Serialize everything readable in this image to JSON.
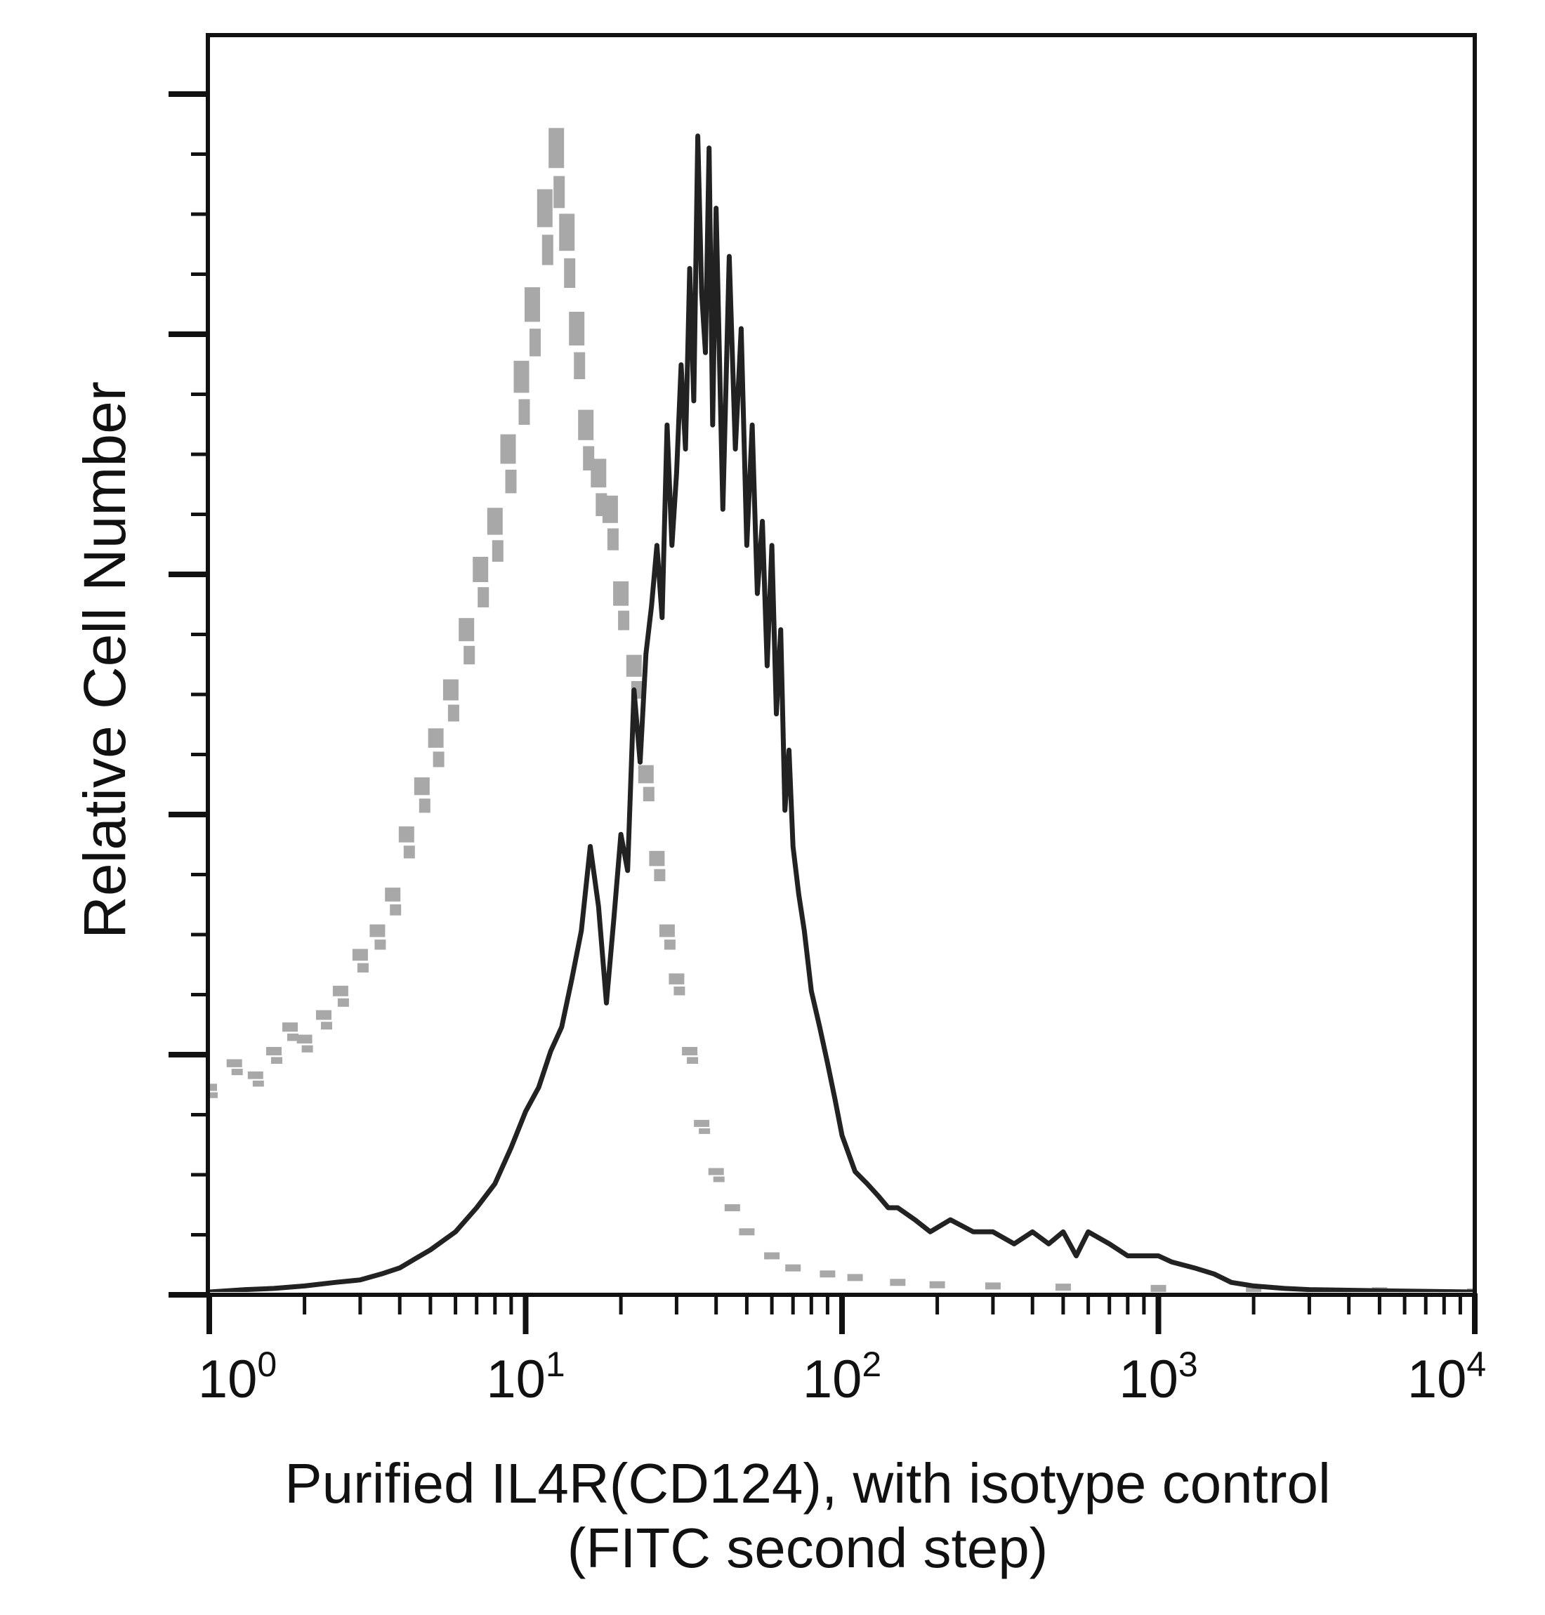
{
  "chart_data": {
    "type": "line",
    "title": "",
    "xlabel": "Purified IL4R(CD124), with isotype control",
    "xlabel_line2": "(FITC second step)",
    "ylabel": "Relative Cell Number",
    "x_scale": "log",
    "xlim": [
      1,
      10000
    ],
    "ylim": [
      0,
      100
    ],
    "x_ticks": [
      {
        "base": "10",
        "exp": "0",
        "value": 1
      },
      {
        "base": "10",
        "exp": "1",
        "value": 10
      },
      {
        "base": "10",
        "exp": "2",
        "value": 100
      },
      {
        "base": "10",
        "exp": "3",
        "value": 1000
      },
      {
        "base": "10",
        "exp": "4",
        "value": 10000
      }
    ],
    "grid": false,
    "legend": "none",
    "series": [
      {
        "style": "gray-dots",
        "color": "#a8a8a8",
        "x": [
          1.0,
          1.2,
          1.4,
          1.6,
          1.8,
          2.0,
          2.3,
          2.6,
          3.0,
          3.4,
          3.8,
          4.2,
          4.7,
          5.2,
          5.8,
          6.5,
          7.2,
          8.0,
          8.8,
          9.7,
          10.5,
          11.5,
          12.5,
          13.5,
          14.5,
          15.5,
          17.0,
          18.5,
          20.0,
          22.0,
          24.0,
          26.0,
          28.0,
          30.0,
          33.0,
          36.0,
          40.0,
          45.0,
          50.0,
          60.0,
          70.0,
          90.0,
          110.0,
          150.0,
          200.0,
          300.0,
          500.0,
          1000.0,
          2000.0,
          5000.0,
          10000.0
        ],
        "y": [
          17,
          19,
          18,
          20,
          22,
          21,
          23,
          25,
          28,
          30,
          33,
          38,
          42,
          46,
          50,
          55,
          60,
          64,
          70,
          76,
          82,
          90,
          95,
          88,
          80,
          72,
          68,
          65,
          58,
          52,
          43,
          36,
          30,
          26,
          20,
          14,
          10,
          7,
          5,
          3,
          2,
          1.5,
          1.2,
          0.8,
          0.6,
          0.5,
          0.4,
          0.3,
          0.2,
          0.1,
          0
        ]
      },
      {
        "style": "black-line",
        "color": "#222222",
        "x": [
          1.0,
          1.3,
          1.6,
          2.0,
          2.5,
          3.0,
          3.5,
          4.0,
          4.5,
          5.0,
          6.0,
          7.0,
          8.0,
          9.0,
          10.0,
          11.0,
          12.0,
          13.0,
          14.0,
          15.0,
          16.0,
          17.0,
          18.0,
          19.0,
          20.0,
          21.0,
          22.0,
          23.0,
          24.0,
          25.0,
          26.0,
          27.0,
          28.0,
          29.0,
          30.0,
          31.0,
          32.0,
          33.0,
          34.0,
          35.0,
          36.0,
          37.0,
          38.0,
          39.0,
          40.0,
          42.0,
          44.0,
          46.0,
          48.0,
          50.0,
          52.0,
          54.0,
          56.0,
          58.0,
          60.0,
          62.0,
          64.0,
          66.0,
          68.0,
          70.0,
          73.0,
          76.0,
          80.0,
          85.0,
          90.0,
          95.0,
          100.0,
          110.0,
          120.0,
          130.0,
          140.0,
          150.0,
          170.0,
          190.0,
          220.0,
          260.0,
          300.0,
          350.0,
          400.0,
          450.0,
          500.0,
          550.0,
          600.0,
          700.0,
          800.0,
          900.0,
          1000.0,
          1100.0,
          1300.0,
          1500.0,
          1700.0,
          2000.0,
          2500.0,
          3000.0,
          5000.0,
          10000.0
        ],
        "y": [
          0,
          0.2,
          0.3,
          0.5,
          0.8,
          1.0,
          1.5,
          2.0,
          2.8,
          3.5,
          5,
          7,
          9,
          12,
          15,
          17,
          20,
          22,
          26,
          30,
          37,
          32,
          24,
          31,
          38,
          35,
          50,
          44,
          53,
          57,
          62,
          56,
          72,
          62,
          68,
          77,
          70,
          85,
          74,
          96,
          83,
          78,
          95,
          72,
          90,
          65,
          86,
          70,
          80,
          62,
          72,
          58,
          64,
          52,
          62,
          48,
          55,
          40,
          45,
          37,
          33,
          30,
          25,
          22,
          19,
          16,
          13,
          10,
          9,
          8,
          7,
          7,
          6,
          5,
          6,
          5,
          5,
          4,
          5,
          4,
          5,
          3,
          5,
          4,
          3,
          3,
          3,
          2.5,
          2,
          1.5,
          0.8,
          0.5,
          0.3,
          0.2,
          0.1,
          0
        ]
      }
    ]
  }
}
